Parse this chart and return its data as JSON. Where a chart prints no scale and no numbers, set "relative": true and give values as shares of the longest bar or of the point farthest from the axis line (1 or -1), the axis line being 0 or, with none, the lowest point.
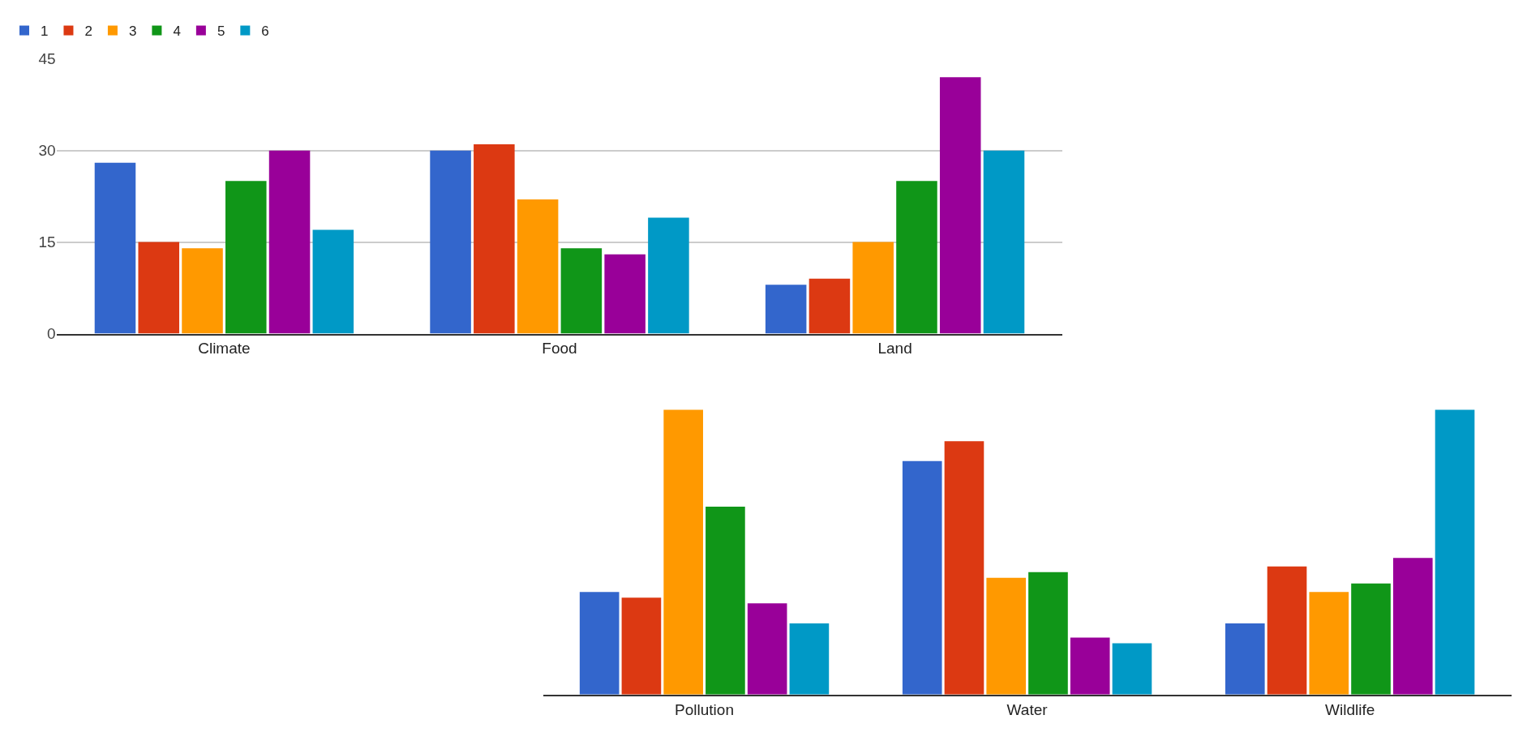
{
  "chart_data": [
    {
      "type": "bar",
      "categories": [
        "Climate",
        "Food",
        "Land"
      ],
      "ylim": [
        0,
        45
      ],
      "yticks": [
        0,
        15,
        30,
        45
      ],
      "grid": "y",
      "legend": "top left",
      "series": [
        {
          "name": "1",
          "color": "#3366cc",
          "values": [
            28,
            30,
            8
          ]
        },
        {
          "name": "2",
          "color": "#dc3912",
          "values": [
            15,
            31,
            9
          ]
        },
        {
          "name": "3",
          "color": "#ff9900",
          "values": [
            14,
            22,
            15
          ]
        },
        {
          "name": "4",
          "color": "#109618",
          "values": [
            25,
            14,
            25
          ]
        },
        {
          "name": "5",
          "color": "#990099",
          "values": [
            30,
            13,
            42
          ]
        },
        {
          "name": "6",
          "color": "#0099c6",
          "values": [
            17,
            19,
            30
          ]
        }
      ]
    },
    {
      "type": "bar",
      "categories": [
        "Pollution",
        "Water",
        "Wildlife"
      ],
      "relative": true,
      "tick_labels": "x",
      "series": [
        {
          "name": "1",
          "color": "#3366cc",
          "values": [
            0.36,
            0.82,
            0.25
          ]
        },
        {
          "name": "2",
          "color": "#dc3912",
          "values": [
            0.34,
            0.89,
            0.45
          ]
        },
        {
          "name": "3",
          "color": "#ff9900",
          "values": [
            1,
            0.41,
            0.36
          ]
        },
        {
          "name": "4",
          "color": "#109618",
          "values": [
            0.66,
            0.43,
            0.39
          ]
        },
        {
          "name": "5",
          "color": "#990099",
          "values": [
            0.32,
            0.2,
            0.48
          ]
        },
        {
          "name": "6",
          "color": "#0099c6",
          "values": [
            0.25,
            0.18,
            1
          ]
        }
      ]
    }
  ]
}
